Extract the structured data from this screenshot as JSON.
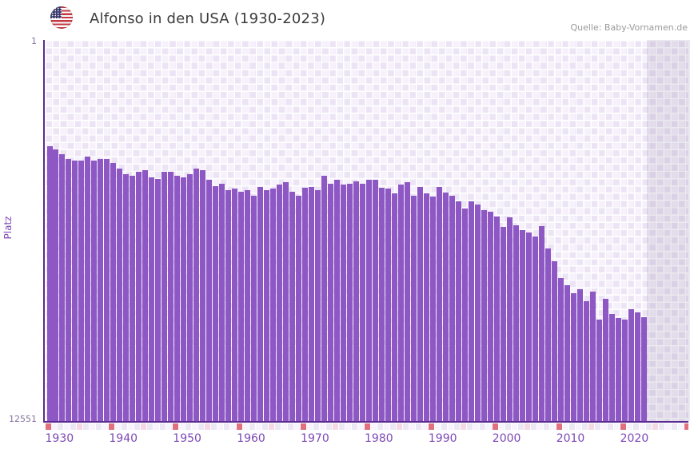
{
  "header": {
    "title": "Alfonso in den USA (1930-2023)",
    "flag_icon": "usa-flag-icon",
    "source": "Quelle: Baby-Vornamen.de"
  },
  "chart_data": {
    "type": "bar",
    "title": "Alfonso in den USA (1930-2023)",
    "ylabel": "Platz",
    "y_axis": {
      "top_label": "1",
      "bottom_label": "12551",
      "min": 1,
      "max": 12551,
      "scale": "log",
      "inverted": true,
      "grid": "checkerboard"
    },
    "x_axis": {
      "tick_labels": [
        "1930",
        "1940",
        "1950",
        "1960",
        "1970",
        "1980",
        "1990",
        "2000",
        "2010",
        "2020"
      ],
      "domain_start": 1930,
      "domain_end": 2030,
      "future_region": {
        "from": 2024,
        "to": 2030
      }
    },
    "legend": "none",
    "years": [
      1930,
      1931,
      1932,
      1933,
      1934,
      1935,
      1936,
      1937,
      1938,
      1939,
      1940,
      1941,
      1942,
      1943,
      1944,
      1945,
      1946,
      1947,
      1948,
      1949,
      1950,
      1951,
      1952,
      1953,
      1954,
      1955,
      1956,
      1957,
      1958,
      1959,
      1960,
      1961,
      1962,
      1963,
      1964,
      1965,
      1966,
      1967,
      1968,
      1969,
      1970,
      1971,
      1972,
      1973,
      1974,
      1975,
      1976,
      1977,
      1978,
      1979,
      1980,
      1981,
      1982,
      1983,
      1984,
      1985,
      1986,
      1987,
      1988,
      1989,
      1990,
      1991,
      1992,
      1993,
      1994,
      1995,
      1996,
      1997,
      1998,
      1999,
      2000,
      2001,
      2002,
      2003,
      2004,
      2005,
      2006,
      2007,
      2008,
      2009,
      2010,
      2011,
      2012,
      2013,
      2014,
      2015,
      2016,
      2017,
      2018,
      2019,
      2020,
      2021,
      2022,
      2023
    ],
    "platz": [
      14,
      15,
      17,
      19,
      20,
      20,
      18,
      20,
      19,
      19,
      21,
      24,
      28,
      29,
      26,
      25,
      30,
      31,
      26,
      26,
      29,
      30,
      28,
      24,
      25,
      32,
      37,
      35,
      41,
      40,
      43,
      41,
      47,
      38,
      41,
      40,
      36,
      34,
      43,
      47,
      39,
      38,
      41,
      29,
      35,
      32,
      36,
      35,
      33,
      35,
      32,
      32,
      39,
      40,
      45,
      36,
      34,
      47,
      38,
      45,
      48,
      38,
      44,
      47,
      54,
      65,
      54,
      59,
      67,
      71,
      80,
      103,
      81,
      99,
      110,
      117,
      130,
      101,
      174,
      239,
      366,
      432,
      527,
      477,
      641,
      509,
      1017,
      608,
      880,
      984,
      1017,
      791,
      851,
      953
    ]
  },
  "colors": {
    "bar": "#8d57c4",
    "axis_line": "#5b2b91",
    "tick_label": "#7d49b5",
    "strip_decade": "#e0707d",
    "strip_half_decade": "#f5d9e2",
    "strip_even": "#ece7f4",
    "strip_odd": "#f7f4fb"
  }
}
